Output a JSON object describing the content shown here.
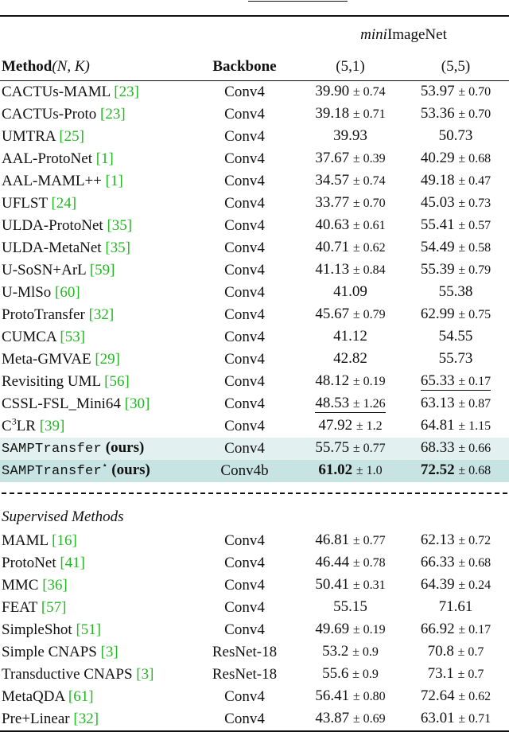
{
  "header": {
    "dataset": "ImageNet",
    "dataset_prefix": "mini",
    "col_method_bold": "Method",
    "col_method_math": "(N, K)",
    "col_backbone": "Backbone",
    "shot1": "(5,1)",
    "shot5": "(5,5)"
  },
  "rows_unsup": [
    {
      "method": "CACTUs-MAML",
      "cite": "[23]",
      "backbone": "Conv4",
      "v1": "39.90",
      "pm1": "± 0.74",
      "v5": "53.97",
      "pm5": "± 0.70"
    },
    {
      "method": "CACTUs-Proto",
      "cite": "[23]",
      "backbone": "Conv4",
      "v1": "39.18",
      "pm1": "± 0.71",
      "v5": "53.36",
      "pm5": "± 0.70"
    },
    {
      "method": "UMTRA",
      "cite": "[25]",
      "backbone": "Conv4",
      "v1": "39.93",
      "pm1": "",
      "v5": "50.73",
      "pm5": ""
    },
    {
      "method": "AAL-ProtoNet",
      "cite": "[1]",
      "backbone": "Conv4",
      "v1": "37.67",
      "pm1": "± 0.39",
      "v5": "40.29",
      "pm5": "± 0.68"
    },
    {
      "method": "AAL-MAML++",
      "cite": "[1]",
      "backbone": "Conv4",
      "v1": "34.57",
      "pm1": "± 0.74",
      "v5": "49.18",
      "pm5": "± 0.47"
    },
    {
      "method": "UFLST",
      "cite": "[24]",
      "backbone": "Conv4",
      "v1": "33.77",
      "pm1": "± 0.70",
      "v5": "45.03",
      "pm5": "± 0.73"
    },
    {
      "method": "ULDA-ProtoNet",
      "cite": "[35]",
      "backbone": "Conv4",
      "v1": "40.63",
      "pm1": "± 0.61",
      "v5": "55.41",
      "pm5": "± 0.57"
    },
    {
      "method": "ULDA-MetaNet",
      "cite": "[35]",
      "backbone": "Conv4",
      "v1": "40.71",
      "pm1": "± 0.62",
      "v5": "54.49",
      "pm5": "± 0.58"
    },
    {
      "method": "U-SoSN+ArL",
      "cite": "[59]",
      "backbone": "Conv4",
      "v1": "41.13",
      "pm1": "± 0.84",
      "v5": "55.39",
      "pm5": "± 0.79"
    },
    {
      "method": "U-MlSo",
      "cite": "[60]",
      "backbone": "Conv4",
      "v1": "41.09",
      "pm1": "",
      "v5": "55.38",
      "pm5": ""
    },
    {
      "method": "ProtoTransfer",
      "cite": "[32]",
      "backbone": "Conv4",
      "v1": "45.67",
      "pm1": "± 0.79",
      "v5": "62.99",
      "pm5": "± 0.75"
    },
    {
      "method": "CUMCA",
      "cite": "[53]",
      "backbone": "Conv4",
      "v1": "41.12",
      "pm1": "",
      "v5": "54.55",
      "pm5": ""
    },
    {
      "method": "Meta-GMVAE",
      "cite": "[29]",
      "backbone": "Conv4",
      "v1": "42.82",
      "pm1": "",
      "v5": "55.73",
      "pm5": ""
    },
    {
      "method": "Revisiting UML",
      "cite": "[56]",
      "backbone": "Conv4",
      "v1": "48.12",
      "pm1": "± 0.19",
      "v5": "65.33",
      "pm5": "± 0.17"
    },
    {
      "method": "CSSL-FSL_Mini64",
      "cite": "[30]",
      "backbone": "Conv4",
      "v1": "48.53",
      "pm1": "± 1.26",
      "v5": "63.13",
      "pm5": "± 0.87"
    },
    {
      "method": "C",
      "method_sup": "3",
      "method_tail": "LR",
      "cite": "[39]",
      "backbone": "Conv4",
      "v1": "47.92",
      "pm1": "± 1.2",
      "v5": "64.81",
      "pm5": "± 1.15"
    }
  ],
  "ours": [
    {
      "method": "SAMPTransfer",
      "suffix": "(ours)",
      "backbone": "Conv4",
      "v1": "55.75",
      "pm1": "± 0.77",
      "v5": "68.33",
      "pm5": "± 0.66"
    },
    {
      "method": "SAMPTransfer",
      "star": "⋆",
      "suffix": "(ours)",
      "backbone": "Conv4b",
      "v1": "61.02",
      "pm1": "± 1.0",
      "v5": "72.52",
      "pm5": "± 0.68"
    }
  ],
  "section_label": "Supervised Methods",
  "rows_sup": [
    {
      "method": "MAML",
      "cite": "[16]",
      "backbone": "Conv4",
      "v1": "46.81",
      "pm1": "± 0.77",
      "v5": "62.13",
      "pm5": "± 0.72"
    },
    {
      "method": "ProtoNet",
      "cite": "[41]",
      "backbone": "Conv4",
      "v1": "46.44",
      "pm1": "± 0.78",
      "v5": "66.33",
      "pm5": "± 0.68"
    },
    {
      "method": "MMC",
      "cite": "[36]",
      "backbone": "Conv4",
      "v1": "50.41",
      "pm1": "± 0.31",
      "v5": "64.39",
      "pm5": "± 0.24"
    },
    {
      "method": "FEAT",
      "cite": "[57]",
      "backbone": "Conv4",
      "v1": "55.15",
      "pm1": "",
      "v5": "71.61",
      "pm5": ""
    },
    {
      "method": "SimpleShot",
      "cite": "[51]",
      "backbone": "Conv4",
      "v1": "49.69",
      "pm1": "± 0.19",
      "v5": "66.92",
      "pm5": "± 0.17"
    },
    {
      "method": "Simple CNAPS",
      "cite": "[3]",
      "backbone": "ResNet-18",
      "v1": "53.2",
      "pm1": "± 0.9",
      "v5": "70.8",
      "pm5": "± 0.7"
    },
    {
      "method": "Transductive CNAPS",
      "cite": "[3]",
      "backbone": "ResNet-18",
      "v1": "55.6",
      "pm1": "± 0.9",
      "v5": "73.1",
      "pm5": "± 0.7"
    },
    {
      "method": "MetaQDA",
      "cite": "[61]",
      "backbone": "Conv4",
      "v1": "56.41",
      "pm1": "± 0.80",
      "v5": "72.64",
      "pm5": "± 0.62"
    },
    {
      "method": "Pre+Linear",
      "cite": "[32]",
      "backbone": "Conv4",
      "v1": "43.87",
      "pm1": "± 0.69",
      "v5": "63.01",
      "pm5": "± 0.71"
    }
  ]
}
